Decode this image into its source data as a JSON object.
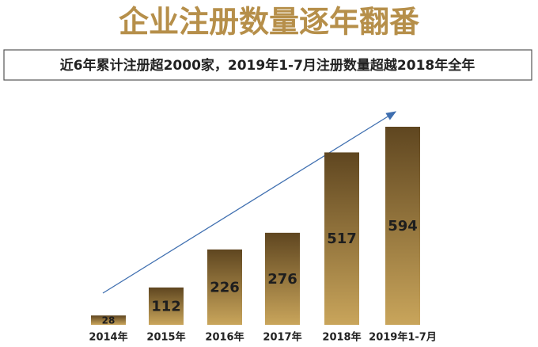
{
  "chart_data": {
    "type": "bar",
    "title": "企业注册数量逐年翻番",
    "subtitle": "近6年累计注册超2000家，2019年1-7月注册数量超越2018年全年",
    "categories": [
      "2014年",
      "2015年",
      "2016年",
      "2017年",
      "2018年",
      "2019年1-7月"
    ],
    "values": [
      28,
      112,
      226,
      276,
      517,
      594
    ],
    "colors": [
      "#5f4620",
      "#c9a55b"
    ],
    "title_color": "#b68f4a"
  }
}
